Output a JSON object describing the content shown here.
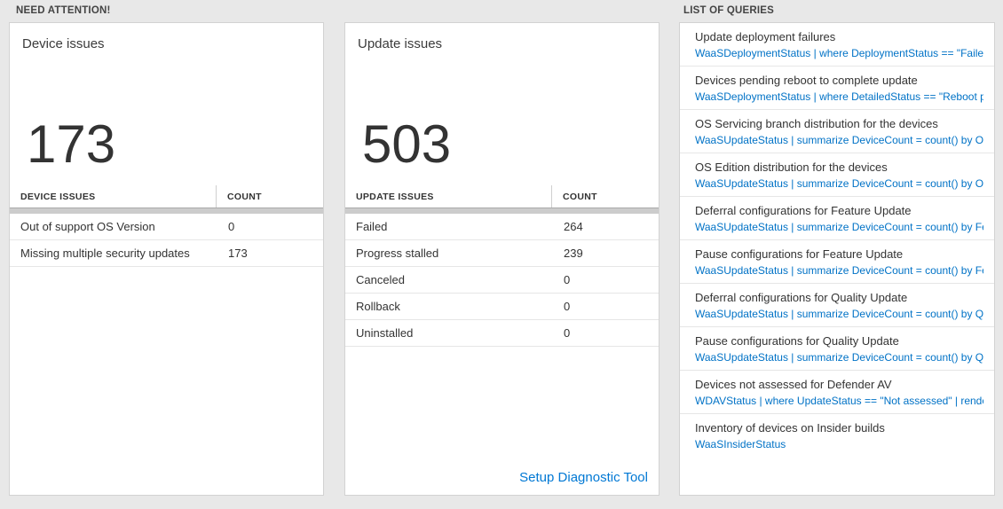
{
  "page": {
    "left_section_title": "NEED ATTENTION!",
    "right_section_title": "LIST OF QUERIES"
  },
  "colors": {
    "query_link_blue": "#0072c6",
    "footer_link_blue": "#0078d4",
    "background_gray": "#e8e8e8",
    "thick_divider_gray": "#cccccc"
  },
  "device_card": {
    "title": "Device issues",
    "big_count": "173",
    "table": {
      "headers": [
        "DEVICE ISSUES",
        "COUNT"
      ],
      "rows": [
        {
          "label": "Out of support OS Version",
          "count": "0"
        },
        {
          "label": "Missing multiple security updates",
          "count": "173"
        }
      ]
    }
  },
  "update_card": {
    "title": "Update issues",
    "big_count": "503",
    "table": {
      "headers": [
        "UPDATE ISSUES",
        "COUNT"
      ],
      "rows": [
        {
          "label": "Failed",
          "count": "264"
        },
        {
          "label": "Progress stalled",
          "count": "239"
        },
        {
          "label": "Canceled",
          "count": "0"
        },
        {
          "label": "Rollback",
          "count": "0"
        },
        {
          "label": "Uninstalled",
          "count": "0"
        }
      ]
    },
    "footer_link": "Setup Diagnostic Tool"
  },
  "queries_card": {
    "items": [
      {
        "title": "Update deployment failures",
        "query": "WaaSDeploymentStatus | where DeploymentStatus == \"Failed\" |..."
      },
      {
        "title": "Devices pending reboot to complete update",
        "query": "WaaSDeploymentStatus | where DetailedStatus == \"Reboot pend..."
      },
      {
        "title": "OS Servicing branch distribution for the devices",
        "query": "WaaSUpdateStatus | summarize DeviceCount = count() by OSSer..."
      },
      {
        "title": "OS Edition distribution for the devices",
        "query": "WaaSUpdateStatus | summarize DeviceCount = count() by OSEdit..."
      },
      {
        "title": "Deferral configurations for Feature Update",
        "query": "WaaSUpdateStatus | summarize DeviceCount = count() by Featur..."
      },
      {
        "title": "Pause configurations for Feature Update",
        "query": "WaaSUpdateStatus | summarize DeviceCount = count() by Featur..."
      },
      {
        "title": "Deferral configurations for Quality Update",
        "query": "WaaSUpdateStatus | summarize DeviceCount = count() by Qualit..."
      },
      {
        "title": "Pause configurations for Quality Update",
        "query": "WaaSUpdateStatus | summarize DeviceCount = count() by Qualit..."
      },
      {
        "title": "Devices not assessed for Defender AV",
        "query": "WDAVStatus | where UpdateStatus == \"Not assessed\" | render ta..."
      },
      {
        "title": "Inventory of devices on Insider builds",
        "query": "WaaSInsiderStatus"
      }
    ]
  }
}
